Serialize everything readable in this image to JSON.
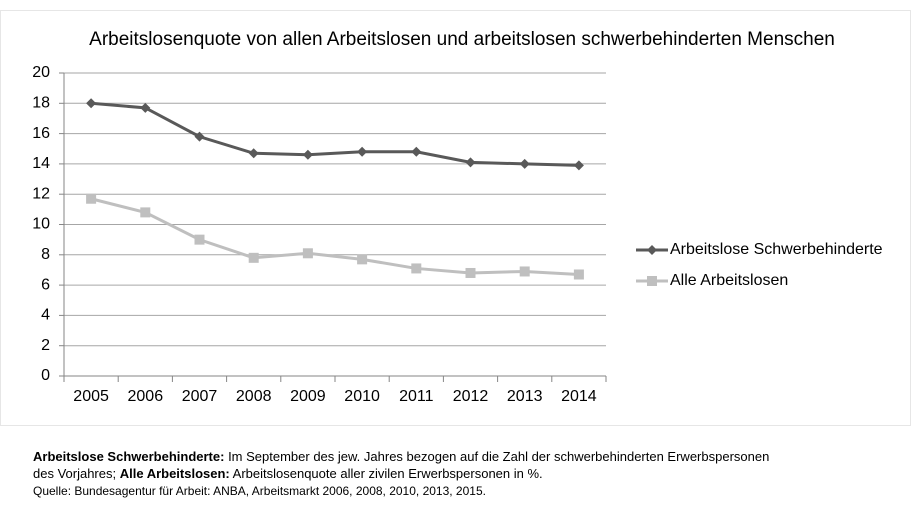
{
  "chart_data": {
    "type": "line",
    "title": "Arbeitslosenquote von allen Arbeitslosen und arbeitslosen schwerbehinderten Menschen",
    "categories": [
      "2005",
      "2006",
      "2007",
      "2008",
      "2009",
      "2010",
      "2011",
      "2012",
      "2013",
      "2014"
    ],
    "series": [
      {
        "name": "Arbeitslose Schwerbehinderte",
        "color": "#595959",
        "marker": "diamond",
        "values": [
          18.0,
          17.7,
          15.8,
          14.7,
          14.6,
          14.8,
          14.8,
          14.1,
          14.0,
          13.9
        ]
      },
      {
        "name": "Alle Arbeitslosen",
        "color": "#bfbfbf",
        "marker": "square",
        "values": [
          11.7,
          10.8,
          9.0,
          7.8,
          8.1,
          7.7,
          7.1,
          6.8,
          6.9,
          6.7
        ]
      }
    ],
    "ylim": [
      0,
      20
    ],
    "yticks": [
      0,
      2,
      4,
      6,
      8,
      10,
      12,
      14,
      16,
      18,
      20
    ],
    "grid": true,
    "legend": "right"
  },
  "footnote": {
    "line1_bold": "Arbeitslose Schwerbehinderte:",
    "line1_text": " Im September des jew. Jahres bezogen auf die Zahl der schwerbehinderten Erwerbspersonen",
    "line2_text": "des Vorjahres; ",
    "line2_bold": "Alle Arbeitslosen:",
    "line2_rest": " Arbeitslosenquote aller zivilen Erwerbspersonen in %.",
    "source": "Quelle: Bundesagentur für Arbeit: ANBA, Arbeitsmarkt 2006, 2008, 2010, 2013, 2015."
  }
}
